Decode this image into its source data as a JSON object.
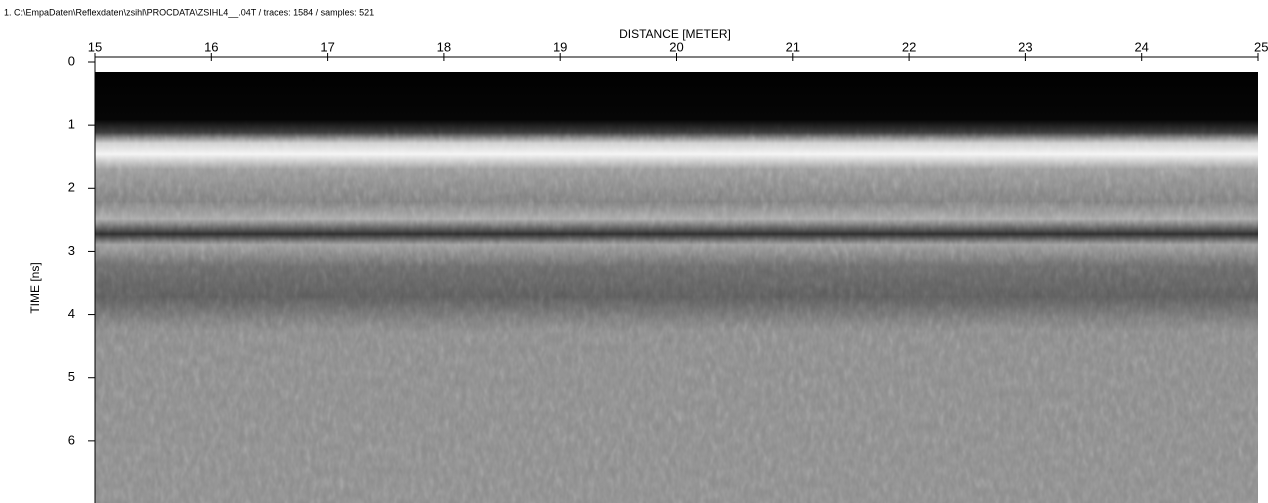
{
  "chart_data": {
    "type": "image",
    "header": "1. C:\\EmpaDaten\\Reflexdaten\\zsihl\\PROCDATA\\ZSIHL4__.04T / traces: 1584 / samples: 521",
    "x_label": "DISTANCE [METER]",
    "y_label": "TIME [ns]",
    "xlim": [
      15,
      25
    ],
    "xticks": [
      15,
      16,
      17,
      18,
      19,
      20,
      21,
      22,
      23,
      24,
      25
    ],
    "ylim": [
      0,
      7
    ],
    "yticks": [
      0,
      1,
      2,
      3,
      4,
      5,
      6
    ]
  }
}
